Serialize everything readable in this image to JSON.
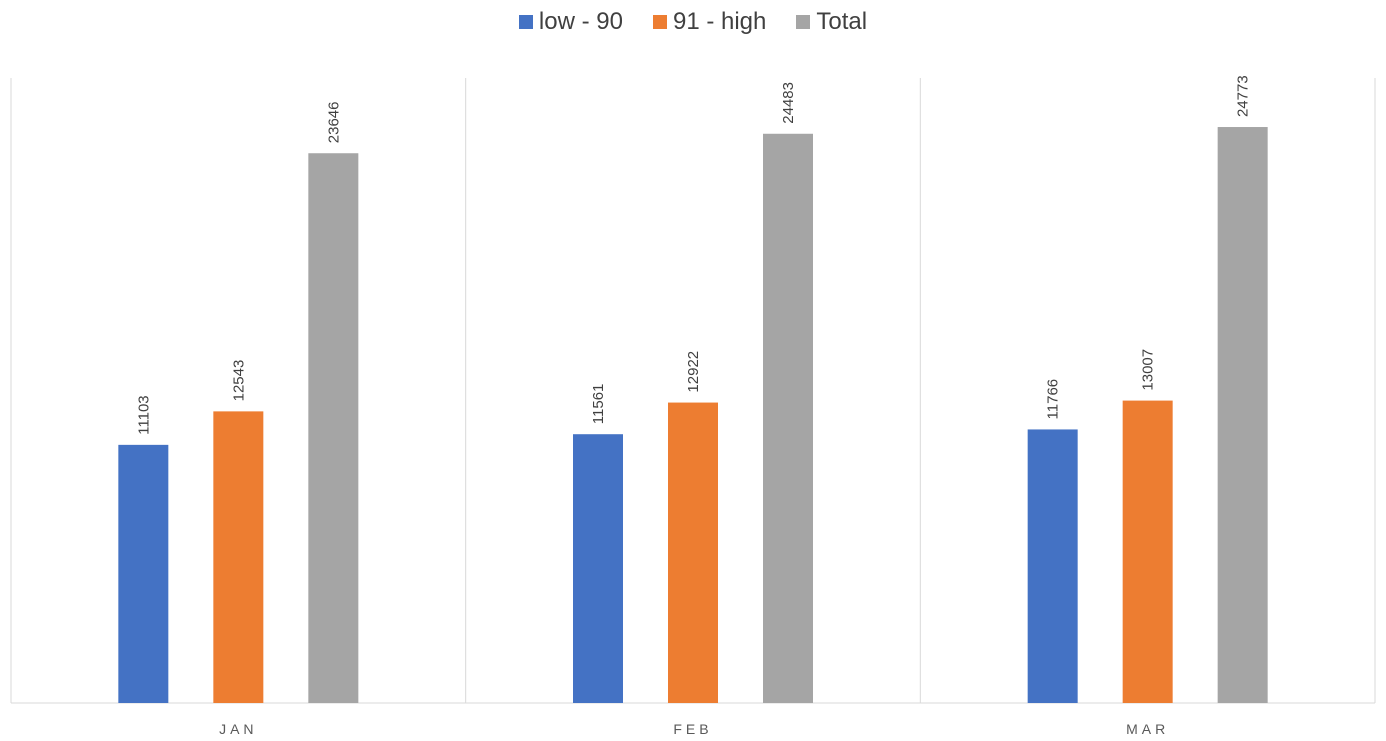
{
  "chart_data": {
    "type": "bar",
    "categories": [
      "JAN",
      "FEB",
      "MAR"
    ],
    "series": [
      {
        "name": "low - 90",
        "color": "#4472C4",
        "values": [
          11103,
          11561,
          11766
        ]
      },
      {
        "name": "91 - high",
        "color": "#ED7D31",
        "values": [
          12543,
          12922,
          13007
        ]
      },
      {
        "name": "Total",
        "color": "#A5A5A5",
        "values": [
          23646,
          24483,
          24773
        ]
      }
    ],
    "title": "",
    "xlabel": "",
    "ylabel": "",
    "ylim": [
      0,
      28000
    ],
    "grid": false,
    "legend_position": "top-center",
    "data_labels": "vertical-above-bars"
  }
}
